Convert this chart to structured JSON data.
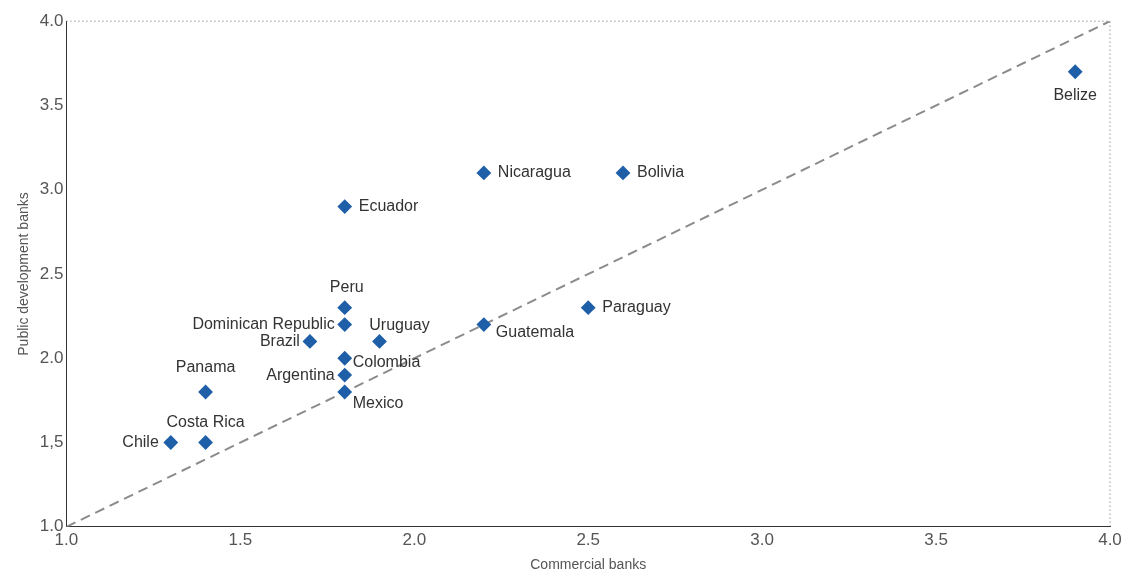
{
  "chart_data": {
    "type": "scatter",
    "xlabel": "Commercial banks",
    "ylabel": "Public development banks",
    "xlim": [
      1.0,
      4.0
    ],
    "xticks": [
      {
        "value": 1,
        "label": "1.0"
      },
      {
        "value": 1.5,
        "label": "1.5"
      },
      {
        "value": 2,
        "label": "2.0"
      },
      {
        "value": 2.5,
        "label": "2.5"
      },
      {
        "value": 3,
        "label": "3.0"
      },
      {
        "value": 3.5,
        "label": "3.5"
      },
      {
        "value": 4,
        "label": "4.0"
      }
    ],
    "ylim": [
      1.0,
      4.0
    ],
    "yticks": [
      {
        "value": 1,
        "label": "1.0"
      },
      {
        "value": 1.5,
        "label": "1,5"
      },
      {
        "value": 2,
        "label": "2.0"
      },
      {
        "value": 2.5,
        "label": "2.5"
      },
      {
        "value": 3,
        "label": "3.0"
      },
      {
        "value": 3.5,
        "label": "3.5"
      },
      {
        "value": 4,
        "label": "4.0"
      }
    ],
    "grid": false,
    "legend": false,
    "marker": "diamond",
    "series": [
      {
        "type": "scatter",
        "color": "#1f5fa8",
        "x": [
          1.3,
          1.4,
          1.4,
          1.7,
          1.8,
          1.8,
          1.8,
          1.8,
          1.8,
          1.9,
          1.8,
          2.2,
          2.2,
          2.6,
          2.5,
          3.9
        ],
        "values": [
          1.5,
          1.5,
          1.8,
          2.1,
          2.2,
          2.3,
          2.0,
          1.9,
          1.8,
          2.1,
          2.9,
          3.1,
          2.2,
          3.1,
          2.3,
          3.7
        ]
      },
      {
        "type": "line",
        "color": "#8c8c8c",
        "line_style": "dashed",
        "marker": "none",
        "x": [
          1.0,
          4.0
        ],
        "values": [
          1.0,
          4.0
        ]
      }
    ],
    "annotations": [
      {
        "text": "Chile",
        "x": 1.3,
        "y": 1.5
      },
      {
        "text": "Costa Rica",
        "x": 1.4,
        "y": 1.5
      },
      {
        "text": "Panama",
        "x": 1.4,
        "y": 1.8
      },
      {
        "text": "Brazil",
        "x": 1.7,
        "y": 2.1
      },
      {
        "text": "Dominican Republic",
        "x": 1.8,
        "y": 2.2
      },
      {
        "text": "Peru",
        "x": 1.8,
        "y": 2.3
      },
      {
        "text": "Colombia",
        "x": 1.8,
        "y": 2.0
      },
      {
        "text": "Argentina",
        "x": 1.8,
        "y": 1.9
      },
      {
        "text": "Mexico",
        "x": 1.8,
        "y": 1.8
      },
      {
        "text": "Uruguay",
        "x": 1.9,
        "y": 2.1
      },
      {
        "text": "Ecuador",
        "x": 1.8,
        "y": 2.9
      },
      {
        "text": "Nicaragua",
        "x": 2.2,
        "y": 3.1
      },
      {
        "text": "Guatemala",
        "x": 2.2,
        "y": 2.2
      },
      {
        "text": "Bolivia",
        "x": 2.6,
        "y": 3.1
      },
      {
        "text": "Paraguay",
        "x": 2.5,
        "y": 2.3
      },
      {
        "text": "Belize",
        "x": 3.9,
        "y": 3.7
      }
    ]
  }
}
